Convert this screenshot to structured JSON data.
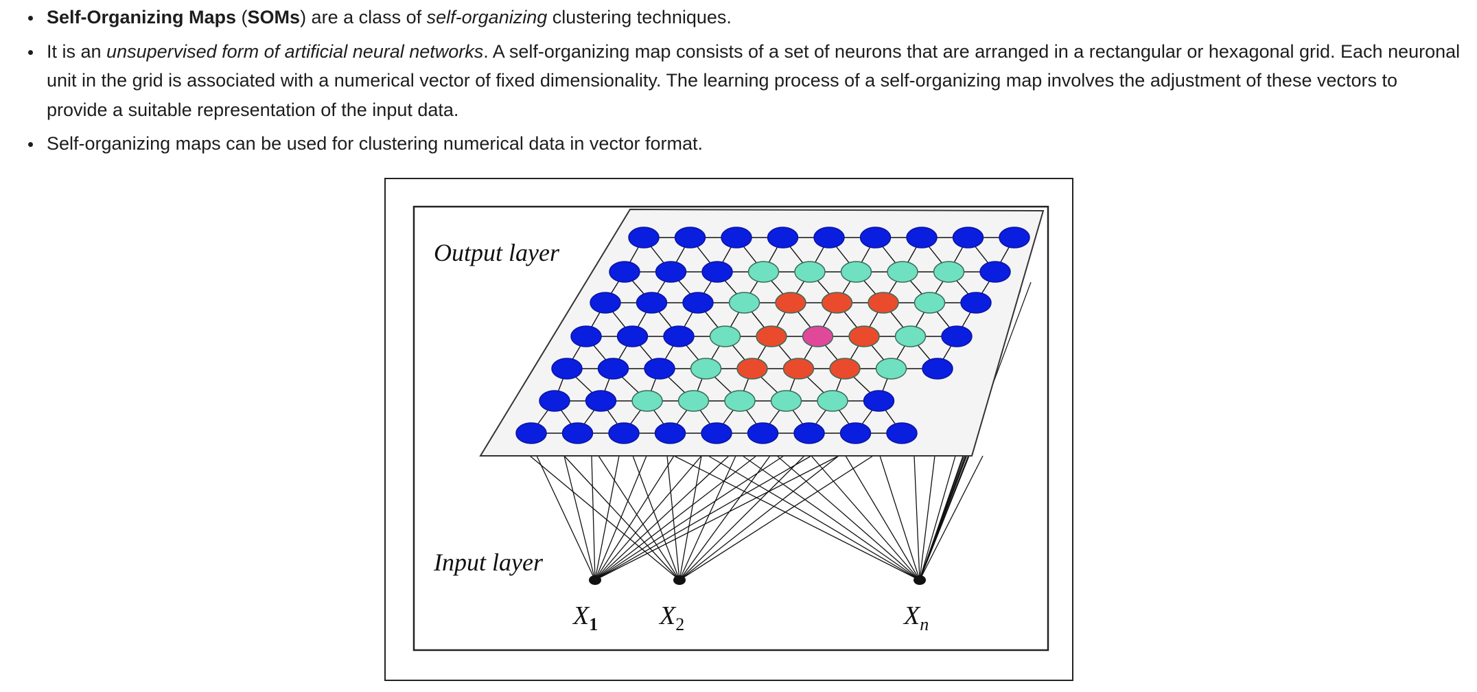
{
  "bullets": [
    {
      "segments": [
        {
          "text": "Self-Organizing Maps",
          "style": "bold"
        },
        {
          "text": " (",
          "style": "normal"
        },
        {
          "text": "SOMs",
          "style": "bold"
        },
        {
          "text": ") are a class of ",
          "style": "normal"
        },
        {
          "text": "self-organizing",
          "style": "italic"
        },
        {
          "text": " clustering techniques.",
          "style": "normal"
        }
      ]
    },
    {
      "segments": [
        {
          "text": "It is an ",
          "style": "normal"
        },
        {
          "text": "unsupervised form of artificial neural networks",
          "style": "italic"
        },
        {
          "text": ". A self-organizing map consists of a set of neurons that are arranged in a rectangular or hexagonal grid. Each neuronal unit in the grid is associated with a numerical vector of fixed dimensionality. The learning process of a self-organizing map involves the adjustment of these vectors to provide a suitable representation of the input data.",
          "style": "normal"
        }
      ]
    },
    {
      "segments": [
        {
          "text": "Self-organizing maps can be used for clustering numerical data in vector format.",
          "style": "normal"
        }
      ]
    }
  ],
  "figure": {
    "output_label": "Output layer",
    "input_label": "Input layer",
    "inputs": [
      {
        "var": "X",
        "sub": "1"
      },
      {
        "var": "X",
        "sub": "2"
      },
      {
        "var": "X",
        "sub": "n"
      }
    ],
    "grid": {
      "rows": [
        "BBBBBBBBB",
        "BBBCCCCCB",
        "BBBCRRRCB",
        "BBBCRPRCB",
        "BBBCRRRCB",
        "BBCCCCCB",
        "BBBBBBBBB"
      ]
    },
    "colors": {
      "B": "#0a1ee0",
      "C": "#6fe0c0",
      "R": "#ea4b2c",
      "P": "#e0489a",
      "line": "#111111",
      "plane": "#f4f4f4"
    }
  }
}
